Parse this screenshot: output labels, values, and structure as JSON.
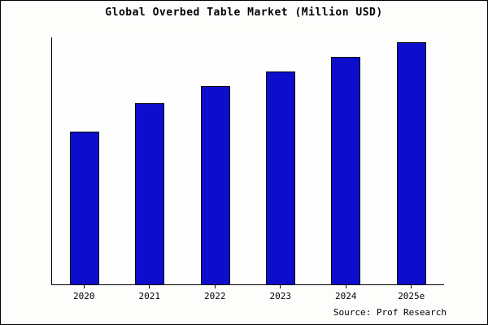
{
  "chart_data": {
    "type": "bar",
    "title": "Global Overbed Table Market (Million USD)",
    "categories": [
      "2020",
      "2021",
      "2022",
      "2023",
      "2024",
      "2025e"
    ],
    "values": [
      63,
      75,
      82,
      88,
      94,
      100
    ],
    "series_note": "No numeric y-axis labels shown; values are relative estimates with tallest bar (2025e) = 100",
    "xlabel": "",
    "ylabel": "",
    "ylim": [
      0,
      100
    ],
    "grid": false,
    "legend": false,
    "bar_color": "#0d0dcd",
    "bar_border_color": "#000000",
    "source_label": "Source: Prof Research"
  }
}
